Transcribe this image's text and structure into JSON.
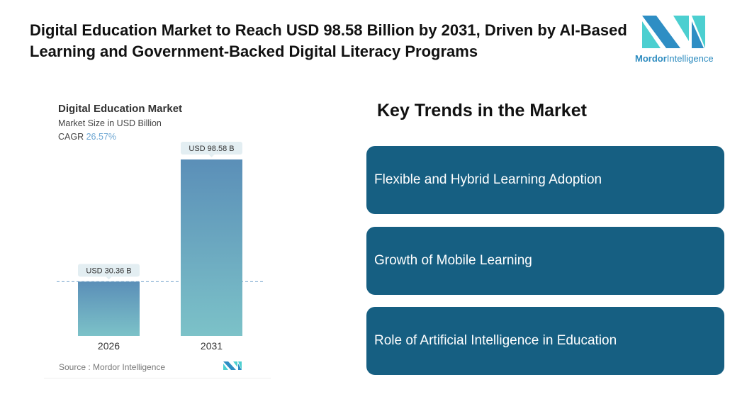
{
  "header": {
    "title": "Digital Education Market to Reach USD 98.58 Billion by 2031, Driven by AI-Based Learning and Government-Backed Digital Literacy Programs"
  },
  "logo": {
    "brand_bold": "Mordor",
    "brand_rest": "Intelligence",
    "colors": [
      "#2e8ec4",
      "#4ccfd0"
    ]
  },
  "chart_data": {
    "type": "bar",
    "title": "Digital Education Market",
    "subtitle": "Market Size in USD Billion",
    "cagr_label": "CAGR",
    "cagr_value": "26.57%",
    "categories": [
      "2026",
      "2031"
    ],
    "values": [
      30.36,
      98.58
    ],
    "data_labels": [
      "USD 30.36 B",
      "USD 98.58 B"
    ],
    "ylim": [
      0,
      98.58
    ],
    "grid": false,
    "source": "Source :  Mordor Intelligence",
    "bar_gradient": [
      "#5b8fb8",
      "#7cc2c8"
    ]
  },
  "trends": {
    "heading": "Key Trends in the Market",
    "items": [
      "Flexible and Hybrid Learning Adoption",
      "Growth of Mobile Learning",
      "Role of Artificial Intelligence in Education"
    ]
  }
}
